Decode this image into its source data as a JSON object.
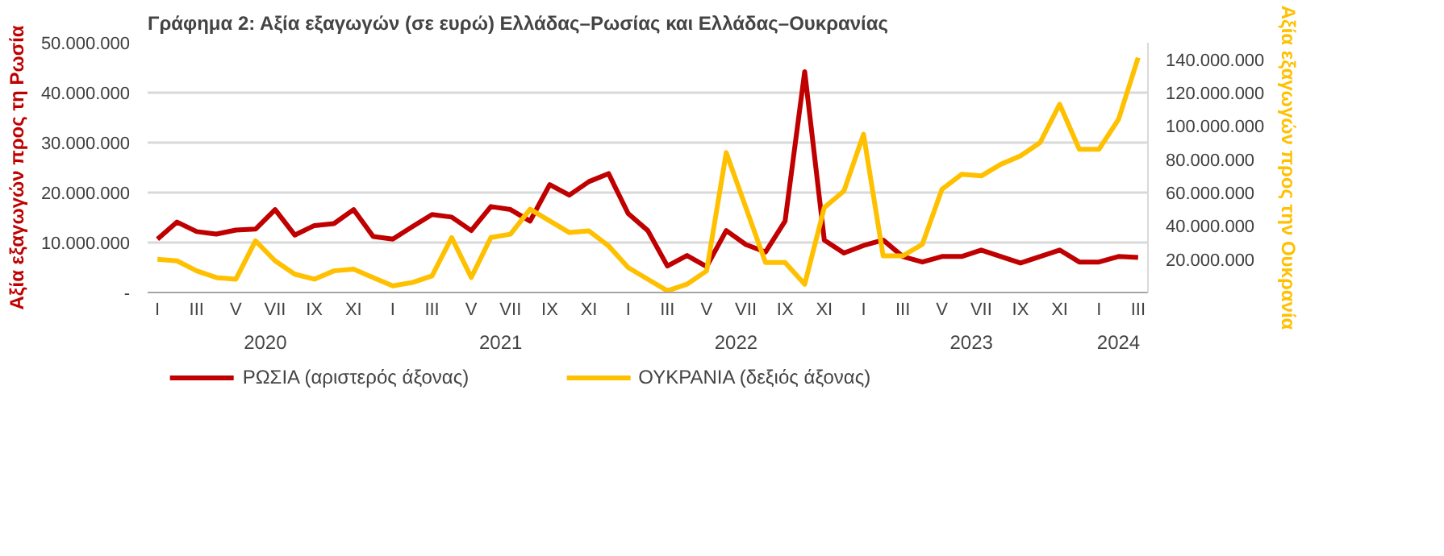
{
  "chart_data": {
    "type": "line",
    "title": "Γράφημα 2: Αξία εξαγωγών (σε ευρώ) Ελλάδας–Ρωσίας και Ελλάδας–Ουκρανίας",
    "ylabel": "Αξία εξαγωγών προς τη Ρωσία",
    "y2label": "Αξία εξαγωγών προς την Ουκρανία",
    "categories": [
      "I",
      null,
      "III",
      null,
      "V",
      null,
      "VII",
      null,
      "IX",
      null,
      "XI",
      null,
      "I",
      null,
      "III",
      null,
      "V",
      null,
      "VII",
      null,
      "IX",
      null,
      "XI",
      null,
      "I",
      null,
      "III",
      null,
      "V",
      null,
      "VII",
      null,
      "IX",
      null,
      "XI",
      null,
      "I",
      null,
      "III",
      null,
      "V",
      null,
      "VII",
      null,
      "IX",
      null,
      "XI",
      null,
      "I",
      null,
      "III"
    ],
    "annotations": [
      "2020",
      "2021",
      "2022",
      "2023",
      "2024"
    ],
    "series": [
      {
        "name": "ΡΩΣΙΑ (αριστερός άξονας)",
        "color": "#c00000",
        "values": [
          10700000,
          14100000,
          12200000,
          11700000,
          12500000,
          12700000,
          16600000,
          11500000,
          13400000,
          13800000,
          16600000,
          11200000,
          10700000,
          13200000,
          15600000,
          15100000,
          12400000,
          17200000,
          16600000,
          14300000,
          21600000,
          19500000,
          22200000,
          23800000,
          15800000,
          12400000,
          5300000,
          7400000,
          5200000,
          12400000,
          9600000,
          8100000,
          14300000,
          44200000,
          10500000,
          7900000,
          9400000,
          10500000,
          7200000,
          6100000,
          7200000,
          7200000,
          8500000,
          7200000,
          5900000,
          7200000,
          8500000,
          6100000,
          6100000,
          7200000,
          7000000
        ]
      },
      {
        "name": "ΟΥΚΡΑΝΙΑ (δεξιός άξονας)",
        "color": "#ffc000",
        "axis": "y2",
        "values": [
          20000000,
          19000000,
          13000000,
          9000000,
          8000000,
          31000000,
          19000000,
          11000000,
          8000000,
          13000000,
          14000000,
          9000000,
          4000000,
          6000000,
          10000000,
          33000000,
          9000000,
          33000000,
          35000000,
          50000000,
          43000000,
          36000000,
          37000000,
          28000000,
          15000000,
          8000000,
          1000000,
          5000000,
          13000000,
          84000000,
          51000000,
          18000000,
          18000000,
          5000000,
          51000000,
          61000000,
          95000000,
          22000000,
          22000000,
          29000000,
          62000000,
          71000000,
          70000000,
          77000000,
          82000000,
          90000000,
          113000000,
          86000000,
          86000000,
          104000000,
          141000000
        ]
      }
    ],
    "ylim": [
      0,
      50000000
    ],
    "yticks": [
      {
        "value": 0,
        "label": "-"
      },
      {
        "value": 10000000,
        "label": "10.000.000"
      },
      {
        "value": 20000000,
        "label": "20.000.000"
      },
      {
        "value": 30000000,
        "label": "30.000.000"
      },
      {
        "value": 40000000,
        "label": "40.000.000"
      },
      {
        "value": 50000000,
        "label": "50.000.000"
      }
    ],
    "y2lim": [
      0,
      150000000
    ],
    "y2ticks": [
      {
        "value": 20000000,
        "label": "20.000.000"
      },
      {
        "value": 40000000,
        "label": "40.000.000"
      },
      {
        "value": 60000000,
        "label": "60.000.000"
      },
      {
        "value": 80000000,
        "label": "80.000.000"
      },
      {
        "value": 100000000,
        "label": "100.000.000"
      },
      {
        "value": 120000000,
        "label": "120.000.000"
      },
      {
        "value": 140000000,
        "label": "140.000.000"
      }
    ],
    "grid": "y",
    "legend": "bottom",
    "marker": "none",
    "line_style": "solid"
  }
}
